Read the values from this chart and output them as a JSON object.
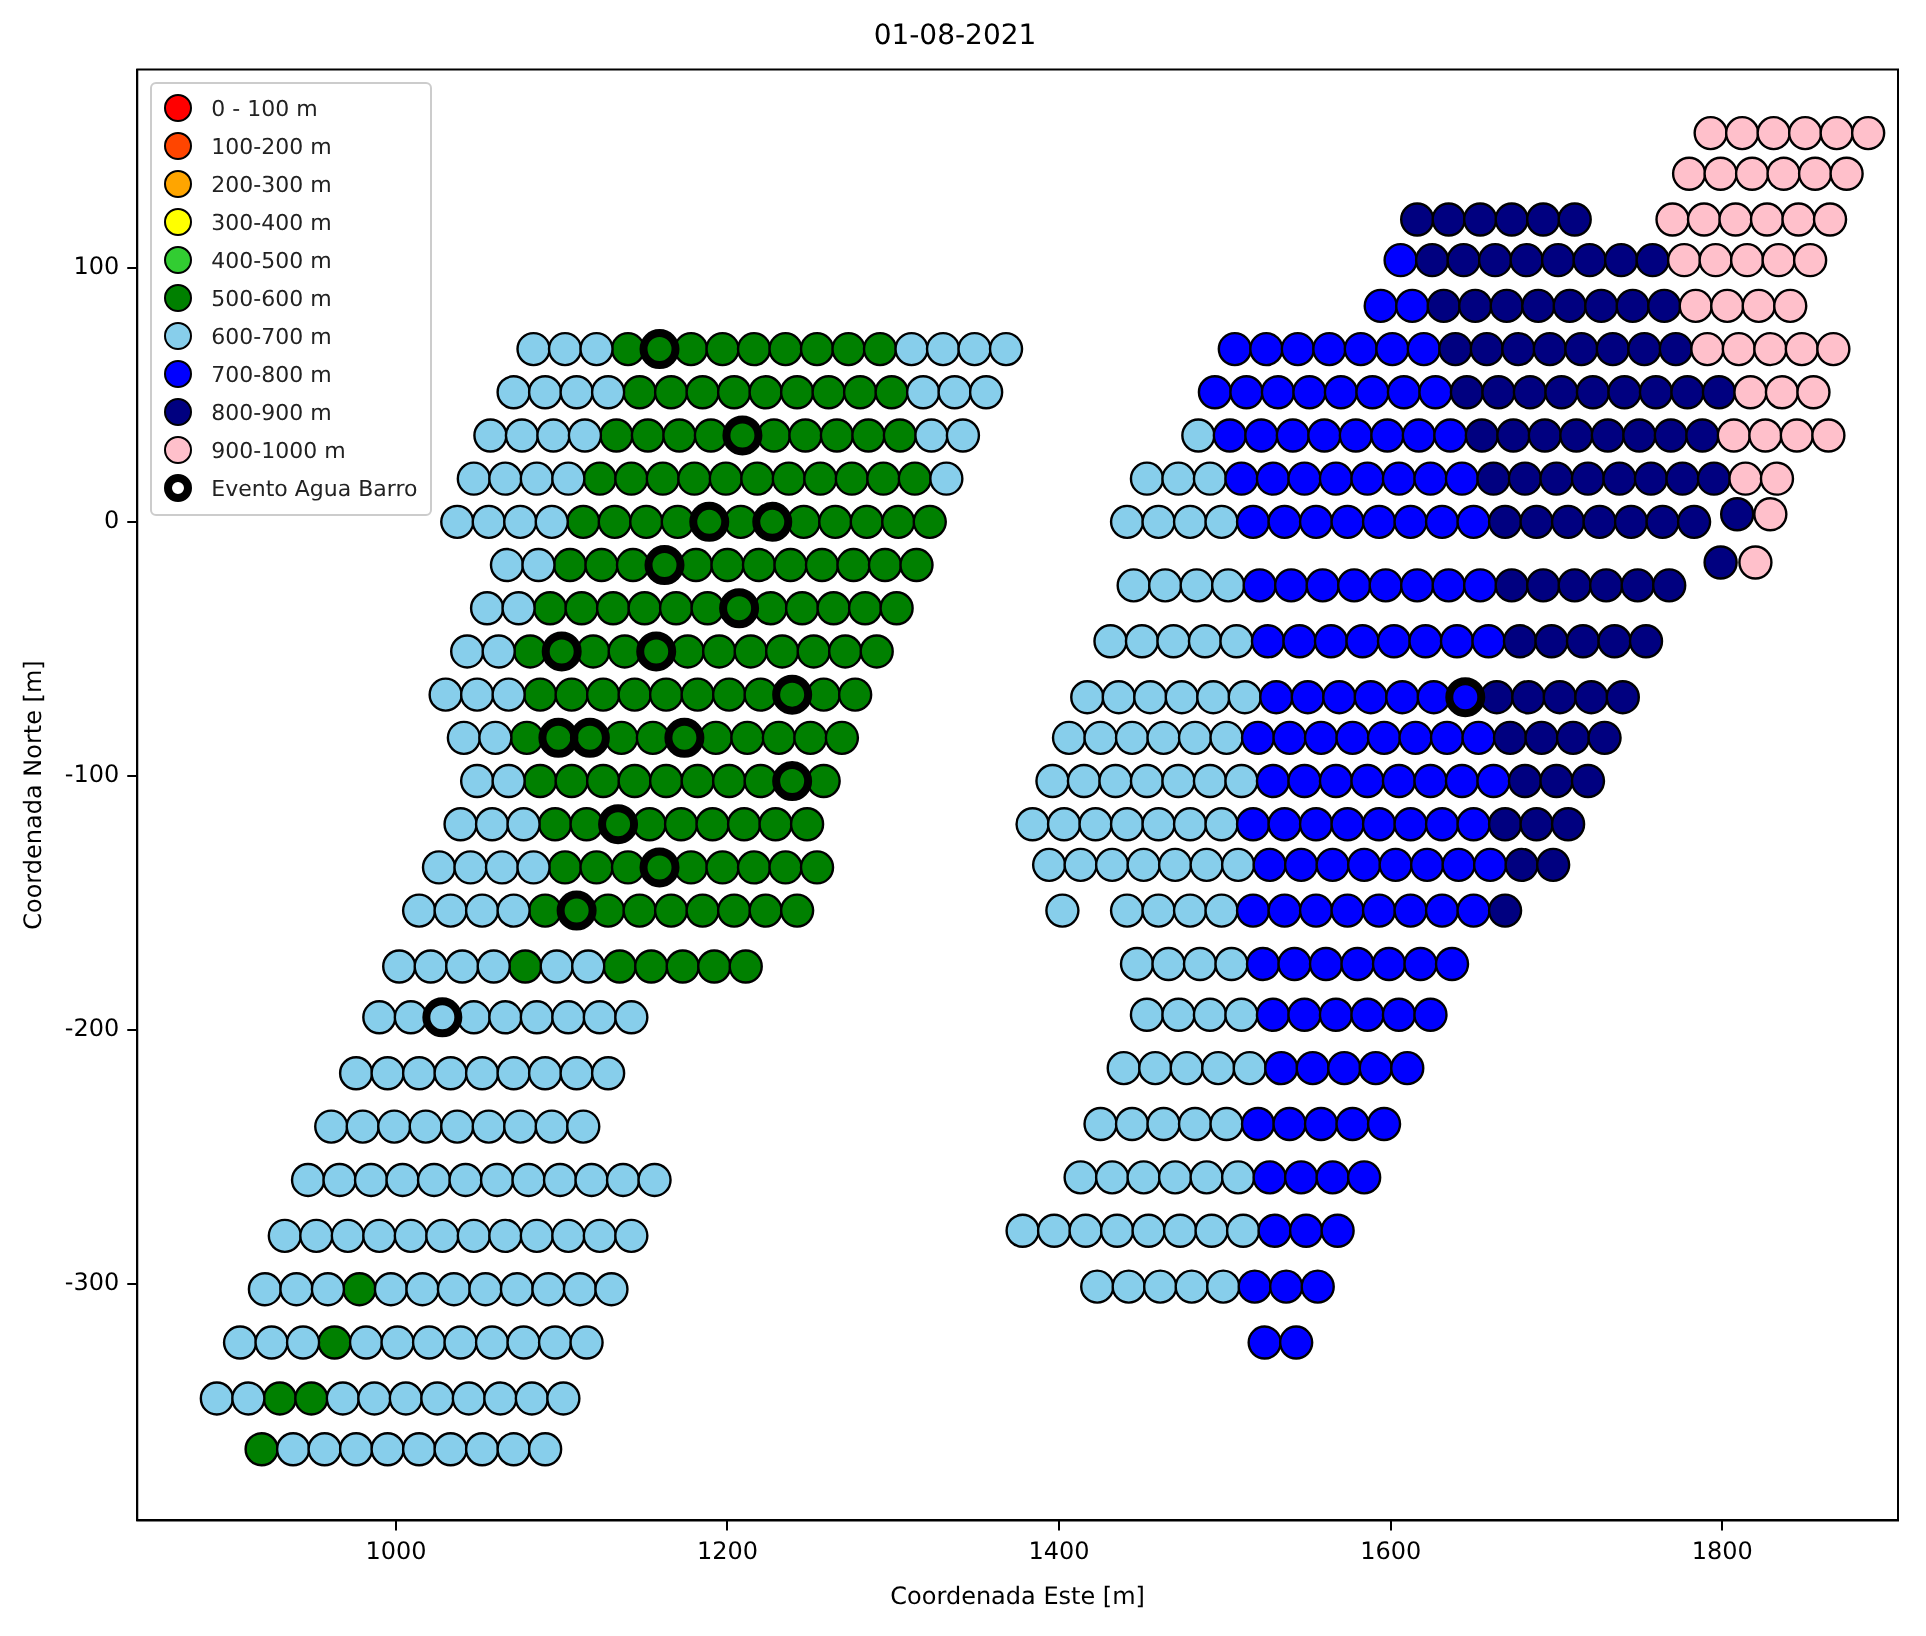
{
  "chart_data": {
    "type": "scatter",
    "title": "01-08-2021",
    "xlabel": "Coordenada Este [m]",
    "ylabel": "Coordenada Norte [m]",
    "xlim": [
      844,
      1906
    ],
    "ylim": [
      -393,
      178
    ],
    "xticks": [
      1000,
      1200,
      1400,
      1600,
      1800
    ],
    "yticks": [
      -300,
      -200,
      -100,
      0,
      100
    ],
    "grid": false,
    "legend": "top left",
    "marker": "circle",
    "series": [
      {
        "name": "0 - 100 m",
        "color": "#ff0000"
      },
      {
        "name": "100-200 m",
        "color": "#ff4500"
      },
      {
        "name": "200-300 m",
        "color": "#ffa500"
      },
      {
        "name": "300-400 m",
        "color": "#ffff00"
      },
      {
        "name": "400-500 m",
        "color": "#32cd32"
      },
      {
        "name": "500-600 m",
        "color": "#008000",
        "x": [
          1140,
          1159,
          1178,
          1197,
          1216,
          1235,
          1254,
          1273,
          1292,
          1147,
          1166,
          1185,
          1204,
          1223,
          1242,
          1261,
          1280,
          1299,
          1133,
          1152,
          1171,
          1190,
          1209,
          1228,
          1247,
          1266,
          1285,
          1304,
          1123,
          1142,
          1161,
          1180,
          1199,
          1218,
          1237,
          1256,
          1275,
          1294,
          1313,
          1113,
          1132,
          1151,
          1170,
          1189,
          1208,
          1227,
          1246,
          1265,
          1284,
          1303,
          1322,
          1105,
          1124,
          1143,
          1162,
          1181,
          1200,
          1219,
          1238,
          1257,
          1276,
          1295,
          1314,
          1093,
          1112,
          1131,
          1150,
          1169,
          1188,
          1207,
          1226,
          1245,
          1264,
          1283,
          1302,
          1081,
          1100,
          1119,
          1138,
          1157,
          1176,
          1195,
          1214,
          1233,
          1252,
          1271,
          1290,
          1087,
          1106,
          1125,
          1144,
          1163,
          1182,
          1201,
          1220,
          1239,
          1258,
          1277,
          1079,
          1098,
          1117,
          1136,
          1155,
          1174,
          1193,
          1212,
          1231,
          1250,
          1269,
          1087,
          1106,
          1125,
          1144,
          1163,
          1182,
          1201,
          1220,
          1239,
          1258,
          1096,
          1115,
          1134,
          1153,
          1172,
          1191,
          1210,
          1229,
          1248,
          1102,
          1121,
          1140,
          1159,
          1178,
          1197,
          1216,
          1235,
          1254,
          1090,
          1109,
          1128,
          1147,
          1166,
          1185,
          1204,
          1223,
          1242,
          1078,
          1135,
          1154,
          1173,
          1192,
          1211,
          978,
          963,
          930,
          949,
          919
        ],
        "values": [
          68,
          68,
          68,
          68,
          68,
          68,
          68,
          68,
          68,
          51,
          51,
          51,
          51,
          51,
          51,
          51,
          51,
          51,
          34,
          34,
          34,
          34,
          34,
          34,
          34,
          34,
          34,
          34,
          17,
          17,
          17,
          17,
          17,
          17,
          17,
          17,
          17,
          17,
          17,
          0,
          0,
          0,
          0,
          0,
          0,
          0,
          0,
          0,
          0,
          0,
          0,
          -17,
          -17,
          -17,
          -17,
          -17,
          -17,
          -17,
          -17,
          -17,
          -17,
          -17,
          -17,
          -34,
          -34,
          -34,
          -34,
          -34,
          -34,
          -34,
          -34,
          -34,
          -34,
          -34,
          -34,
          -51,
          -51,
          -51,
          -51,
          -51,
          -51,
          -51,
          -51,
          -51,
          -51,
          -51,
          -51,
          -68,
          -68,
          -68,
          -68,
          -68,
          -68,
          -68,
          -68,
          -68,
          -68,
          -68,
          -85,
          -85,
          -85,
          -85,
          -85,
          -85,
          -85,
          -85,
          -85,
          -85,
          -85,
          -102,
          -102,
          -102,
          -102,
          -102,
          -102,
          -102,
          -102,
          -102,
          -102,
          -119,
          -119,
          -119,
          -119,
          -119,
          -119,
          -119,
          -119,
          -119,
          -136,
          -136,
          -136,
          -136,
          -136,
          -136,
          -136,
          -136,
          -136,
          -153,
          -153,
          -153,
          -153,
          -153,
          -153,
          -153,
          -153,
          -153,
          -175,
          -175,
          -175,
          -175,
          -175,
          -175,
          -302,
          -323,
          -345,
          -345,
          -365
        ]
      },
      {
        "name": "600-700 m",
        "color": "#87ceeb",
        "x": [
          1083,
          1102,
          1121,
          1311,
          1330,
          1349,
          1368,
          1071,
          1090,
          1109,
          1128,
          1318,
          1337,
          1356,
          1057,
          1076,
          1095,
          1114,
          1323,
          1342,
          1047,
          1066,
          1085,
          1104,
          1332,
          1037,
          1056,
          1075,
          1094,
          1067,
          1086,
          1055,
          1074,
          1043,
          1062,
          1030,
          1049,
          1068,
          1041,
          1060,
          1049,
          1068,
          1039,
          1058,
          1077,
          1026,
          1045,
          1064,
          1083,
          1014,
          1033,
          1052,
          1071,
          1002,
          1021,
          1040,
          1059,
          1097,
          1116,
          990,
          1009,
          1028,
          1047,
          1066,
          1085,
          1104,
          1123,
          1142,
          976,
          995,
          1014,
          1033,
          1052,
          1071,
          1090,
          1109,
          1128,
          961,
          980,
          999,
          1018,
          1037,
          1056,
          1075,
          1094,
          1113,
          947,
          966,
          985,
          1004,
          1023,
          1042,
          1061,
          1080,
          1099,
          1118,
          1137,
          1156,
          933,
          952,
          971,
          990,
          1009,
          1028,
          1047,
          1066,
          1085,
          1104,
          1123,
          1142,
          921,
          940,
          959,
          997,
          1016,
          1035,
          1054,
          1073,
          1092,
          1111,
          1130,
          906,
          925,
          944,
          982,
          1001,
          1020,
          1039,
          1058,
          1077,
          1096,
          1115,
          892,
          911,
          968,
          987,
          1006,
          1025,
          1044,
          1063,
          1082,
          1101,
          938,
          957,
          976,
          995,
          1014,
          1033,
          1052,
          1071,
          1090,
          1484,
          1453,
          1472,
          1491,
          1441,
          1460,
          1479,
          1498,
          1445,
          1464,
          1483,
          1502,
          1431,
          1450,
          1469,
          1488,
          1507,
          1417,
          1436,
          1455,
          1474,
          1493,
          1512,
          1406,
          1425,
          1444,
          1463,
          1482,
          1501,
          1396,
          1415,
          1434,
          1453,
          1472,
          1491,
          1510,
          1384,
          1403,
          1422,
          1441,
          1460,
          1479,
          1498,
          1394,
          1413,
          1432,
          1451,
          1470,
          1489,
          1508,
          1402,
          1441,
          1460,
          1479,
          1498,
          1447,
          1466,
          1485,
          1504,
          1453,
          1472,
          1491,
          1510,
          1439,
          1458,
          1477,
          1496,
          1515,
          1425,
          1444,
          1463,
          1482,
          1501,
          1413,
          1432,
          1451,
          1470,
          1489,
          1508,
          1378,
          1397,
          1416,
          1435,
          1454,
          1473,
          1492,
          1511,
          1423,
          1442,
          1461,
          1480,
          1499
        ],
        "values": [
          68,
          68,
          68,
          68,
          68,
          68,
          68,
          51,
          51,
          51,
          51,
          51,
          51,
          51,
          34,
          34,
          34,
          34,
          34,
          34,
          17,
          17,
          17,
          17,
          17,
          0,
          0,
          0,
          0,
          -17,
          -17,
          -34,
          -34,
          -51,
          -51,
          -68,
          -68,
          -68,
          -85,
          -85,
          -102,
          -102,
          -119,
          -119,
          -119,
          -136,
          -136,
          -136,
          -136,
          -153,
          -153,
          -153,
          -153,
          -175,
          -175,
          -175,
          -175,
          -175,
          -175,
          -195,
          -195,
          -195,
          -195,
          -195,
          -195,
          -195,
          -195,
          -195,
          -217,
          -217,
          -217,
          -217,
          -217,
          -217,
          -217,
          -217,
          -217,
          -238,
          -238,
          -238,
          -238,
          -238,
          -238,
          -238,
          -238,
          -238,
          -259,
          -259,
          -259,
          -259,
          -259,
          -259,
          -259,
          -259,
          -259,
          -259,
          -259,
          -259,
          -281,
          -281,
          -281,
          -281,
          -281,
          -281,
          -281,
          -281,
          -281,
          -281,
          -281,
          -281,
          -302,
          -302,
          -302,
          -302,
          -302,
          -302,
          -302,
          -302,
          -302,
          -302,
          -302,
          -323,
          -323,
          -323,
          -323,
          -323,
          -323,
          -323,
          -323,
          -323,
          -323,
          -323,
          -345,
          -345,
          -345,
          -345,
          -345,
          -345,
          -345,
          -345,
          -345,
          -345,
          -365,
          -365,
          -365,
          -365,
          -365,
          -365,
          -365,
          -365,
          -365,
          34,
          17,
          17,
          17,
          0,
          0,
          0,
          0,
          -25,
          -25,
          -25,
          -25,
          -47,
          -47,
          -47,
          -47,
          -47,
          -69,
          -69,
          -69,
          -69,
          -69,
          -69,
          -85,
          -85,
          -85,
          -85,
          -85,
          -85,
          -102,
          -102,
          -102,
          -102,
          -102,
          -102,
          -102,
          -119,
          -119,
          -119,
          -119,
          -119,
          -119,
          -119,
          -135,
          -135,
          -135,
          -135,
          -135,
          -135,
          -135,
          -153,
          -153,
          -153,
          -153,
          -153,
          -174,
          -174,
          -174,
          -174,
          -194,
          -194,
          -194,
          -194,
          -215,
          -215,
          -215,
          -215,
          -215,
          -237,
          -237,
          -237,
          -237,
          -237,
          -258,
          -258,
          -258,
          -258,
          -258,
          -258,
          -279,
          -279,
          -279,
          -279,
          -279,
          -279,
          -279,
          -279,
          -301,
          -301,
          -301,
          -301,
          -301
        ]
      },
      {
        "name": "700-800 m",
        "color": "#0000ff",
        "x": [
          1606,
          1594,
          1613,
          1506,
          1525,
          1544,
          1563,
          1582,
          1601,
          1620,
          1494,
          1513,
          1532,
          1551,
          1570,
          1589,
          1608,
          1627,
          1503,
          1522,
          1541,
          1560,
          1579,
          1598,
          1617,
          1636,
          1510,
          1529,
          1548,
          1567,
          1586,
          1605,
          1624,
          1643,
          1517,
          1536,
          1555,
          1574,
          1593,
          1612,
          1631,
          1650,
          1521,
          1540,
          1559,
          1578,
          1597,
          1616,
          1635,
          1654,
          1526,
          1545,
          1564,
          1583,
          1602,
          1621,
          1640,
          1659,
          1531,
          1550,
          1569,
          1588,
          1607,
          1626,
          1645,
          1520,
          1539,
          1558,
          1577,
          1596,
          1615,
          1634,
          1653,
          1529,
          1548,
          1567,
          1586,
          1605,
          1624,
          1643,
          1662,
          1517,
          1536,
          1555,
          1574,
          1593,
          1612,
          1631,
          1650,
          1527,
          1546,
          1565,
          1584,
          1603,
          1622,
          1641,
          1660,
          1517,
          1536,
          1555,
          1574,
          1593,
          1612,
          1631,
          1650,
          1523,
          1542,
          1561,
          1580,
          1599,
          1618,
          1637,
          1529,
          1548,
          1567,
          1586,
          1605,
          1624,
          1534,
          1553,
          1572,
          1591,
          1610,
          1520,
          1539,
          1558,
          1577,
          1596,
          1527,
          1546,
          1565,
          1584,
          1530,
          1549,
          1568,
          1518,
          1537,
          1556,
          1524,
          1543
        ],
        "values": [
          103,
          85,
          85,
          68,
          68,
          68,
          68,
          68,
          68,
          68,
          51,
          51,
          51,
          51,
          51,
          51,
          51,
          51,
          34,
          34,
          34,
          34,
          34,
          34,
          34,
          34,
          17,
          17,
          17,
          17,
          17,
          17,
          17,
          17,
          0,
          0,
          0,
          0,
          0,
          0,
          0,
          0,
          -25,
          -25,
          -25,
          -25,
          -25,
          -25,
          -25,
          -25,
          -47,
          -47,
          -47,
          -47,
          -47,
          -47,
          -47,
          -47,
          -69,
          -69,
          -69,
          -69,
          -69,
          -69,
          -69,
          -85,
          -85,
          -85,
          -85,
          -85,
          -85,
          -85,
          -85,
          -102,
          -102,
          -102,
          -102,
          -102,
          -102,
          -102,
          -102,
          -119,
          -119,
          -119,
          -119,
          -119,
          -119,
          -119,
          -119,
          -135,
          -135,
          -135,
          -135,
          -135,
          -135,
          -135,
          -135,
          -153,
          -153,
          -153,
          -153,
          -153,
          -153,
          -153,
          -153,
          -174,
          -174,
          -174,
          -174,
          -174,
          -174,
          -174,
          -194,
          -194,
          -194,
          -194,
          -194,
          -194,
          -215,
          -215,
          -215,
          -215,
          -215,
          -237,
          -237,
          -237,
          -237,
          -237,
          -258,
          -258,
          -258,
          -258,
          -279,
          -279,
          -279,
          -301,
          -301,
          -301,
          -323,
          -323
        ]
      },
      {
        "name": "800-900 m",
        "color": "#000080",
        "x": [
          1616,
          1635,
          1654,
          1673,
          1692,
          1711,
          1625,
          1644,
          1663,
          1682,
          1701,
          1720,
          1739,
          1758,
          1632,
          1651,
          1670,
          1689,
          1708,
          1727,
          1746,
          1765,
          1639,
          1658,
          1677,
          1696,
          1715,
          1734,
          1753,
          1772,
          1646,
          1665,
          1684,
          1703,
          1722,
          1741,
          1760,
          1779,
          1798,
          1655,
          1674,
          1693,
          1712,
          1731,
          1750,
          1769,
          1788,
          1662,
          1681,
          1700,
          1719,
          1738,
          1757,
          1776,
          1795,
          1669,
          1688,
          1707,
          1726,
          1745,
          1764,
          1783,
          1809,
          1799,
          1673,
          1692,
          1711,
          1730,
          1749,
          1768,
          1678,
          1697,
          1716,
          1735,
          1754,
          1664,
          1683,
          1702,
          1721,
          1740,
          1672,
          1691,
          1710,
          1729,
          1681,
          1700,
          1719,
          1669,
          1688,
          1707,
          1679,
          1698,
          1669
        ],
        "values": [
          119,
          119,
          119,
          119,
          119,
          119,
          103,
          103,
          103,
          103,
          103,
          103,
          103,
          103,
          85,
          85,
          85,
          85,
          85,
          85,
          85,
          85,
          68,
          68,
          68,
          68,
          68,
          68,
          68,
          68,
          51,
          51,
          51,
          51,
          51,
          51,
          51,
          51,
          51,
          34,
          34,
          34,
          34,
          34,
          34,
          34,
          34,
          17,
          17,
          17,
          17,
          17,
          17,
          17,
          17,
          0,
          0,
          0,
          0,
          0,
          0,
          0,
          3,
          -16,
          -25,
          -25,
          -25,
          -25,
          -25,
          -25,
          -47,
          -47,
          -47,
          -47,
          -47,
          -69,
          -69,
          -69,
          -69,
          -69,
          -85,
          -85,
          -85,
          -85,
          -102,
          -102,
          -102,
          -119,
          -119,
          -119,
          -135,
          -135,
          -153
        ]
      },
      {
        "name": "900-1000 m",
        "color": "#ffc0cb",
        "x": [
          1793,
          1812,
          1831,
          1850,
          1869,
          1888,
          1780,
          1799,
          1818,
          1837,
          1856,
          1875,
          1770,
          1789,
          1808,
          1827,
          1846,
          1865,
          1777,
          1796,
          1815,
          1834,
          1853,
          1784,
          1803,
          1822,
          1841,
          1791,
          1810,
          1829,
          1848,
          1867,
          1817,
          1836,
          1855,
          1807,
          1826,
          1845,
          1864,
          1814,
          1833,
          1829,
          1820
        ],
        "values": [
          153,
          153,
          153,
          153,
          153,
          153,
          137,
          137,
          137,
          137,
          137,
          137,
          119,
          119,
          119,
          119,
          119,
          119,
          103,
          103,
          103,
          103,
          103,
          85,
          85,
          85,
          85,
          68,
          68,
          68,
          68,
          68,
          51,
          51,
          51,
          34,
          34,
          34,
          34,
          17,
          17,
          3,
          -16
        ]
      },
      {
        "name": "Evento Agua Barro",
        "color": "#000000",
        "x": [
          1159,
          1209,
          1189,
          1227,
          1162,
          1207,
          1100,
          1157,
          1239,
          1098,
          1117,
          1174,
          1239,
          1134,
          1159,
          1109,
          1028,
          1645
        ],
        "values": [
          68,
          34,
          0,
          0,
          -17,
          -34,
          -51,
          -51,
          -68,
          -85,
          -85,
          -85,
          -102,
          -119,
          -136,
          -153,
          -195,
          -69
        ]
      }
    ]
  }
}
